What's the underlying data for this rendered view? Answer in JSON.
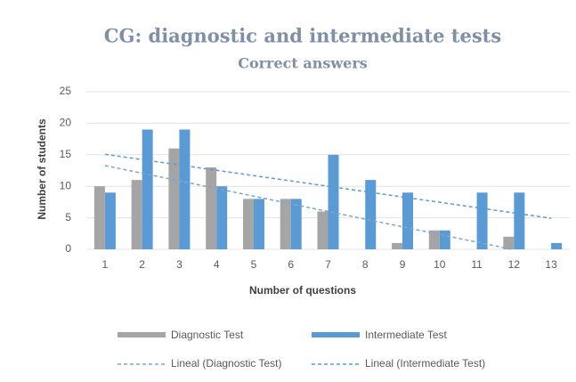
{
  "chart_data": {
    "type": "bar",
    "title": "CG: diagnostic and intermediate tests",
    "subtitle": "Correct answers",
    "x_label": "Number of questions",
    "y_label": "Number of students",
    "categories": [
      "1",
      "2",
      "3",
      "4",
      "5",
      "6",
      "7",
      "8",
      "9",
      "10",
      "11",
      "12",
      "13"
    ],
    "series": [
      {
        "name": "Diagnostic Test",
        "color": "#a5a5a5",
        "values": [
          10,
          11,
          16,
          13,
          8,
          8,
          6,
          0,
          1,
          3,
          0,
          2,
          0
        ],
        "trend_name": "Lineal (Diagnostic Test)",
        "trend_color": "#7ea6cc"
      },
      {
        "name": "Intermediate Test",
        "color": "#5b9bd5",
        "values": [
          9,
          19,
          19,
          10,
          8,
          8,
          15,
          11,
          9,
          3,
          9,
          9,
          1
        ],
        "trend_name": "Lineal (Intermediate Test)",
        "trend_color": "#5b9bd5"
      }
    ],
    "ylim": [
      0,
      25
    ],
    "yticks": [
      0,
      5,
      10,
      15,
      20,
      25
    ],
    "grid": true,
    "legend": "bottom"
  }
}
